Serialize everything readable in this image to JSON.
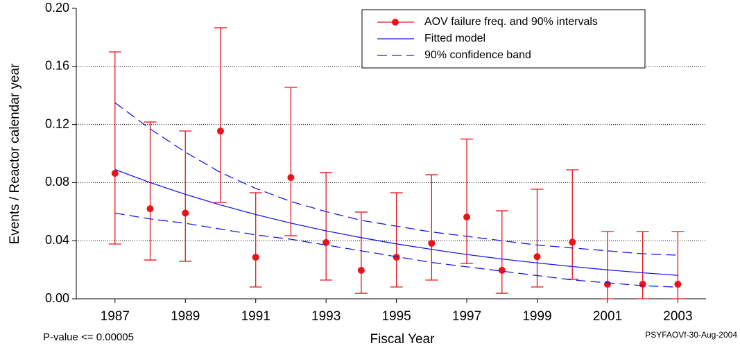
{
  "chart_data": {
    "type": "errorbar",
    "xlabel": "Fiscal Year",
    "ylabel": "Events / Reactor calendar year",
    "footnote_left": "P-value <= 0.00005",
    "footnote_right": "PSYFAOVf-30-Aug-2004",
    "x": [
      1987,
      1988,
      1989,
      1990,
      1991,
      1992,
      1993,
      1994,
      1995,
      1996,
      1997,
      1998,
      1999,
      2000,
      2001,
      2002,
      2003
    ],
    "xlim": [
      1985.9,
      2003.8
    ],
    "xticks": [
      1987,
      1989,
      1991,
      1993,
      1995,
      1997,
      1999,
      2001,
      2003
    ],
    "ylim": [
      0,
      0.2
    ],
    "yticks": [
      {
        "value": 0,
        "label": "0.00"
      },
      {
        "value": 0.04,
        "label": "0.04"
      },
      {
        "value": 0.08,
        "label": "0.08"
      },
      {
        "value": 0.12,
        "label": "0.12"
      },
      {
        "value": 0.16,
        "label": "0.16"
      },
      {
        "value": 0.2,
        "label": "0.20"
      }
    ],
    "grid": true,
    "legend": "top-right",
    "series": [
      {
        "name": "AOV failure freq. and 90% intervals",
        "color": "#e8141b",
        "marker": "circle",
        "values": [
          0.0864,
          0.062,
          0.059,
          0.1155,
          0.0286,
          0.0835,
          0.0387,
          0.0196,
          0.0286,
          0.0382,
          0.0563,
          0.0196,
          0.029,
          0.039,
          0.01,
          0.01,
          0.01
        ],
        "lower": [
          0.0377,
          0.0267,
          0.0258,
          0.0663,
          0.0081,
          0.0434,
          0.0129,
          0.0038,
          0.0081,
          0.0129,
          0.0243,
          0.0038,
          0.0081,
          0.0134,
          0,
          0,
          0
        ],
        "upper": [
          0.17,
          0.1217,
          0.1155,
          0.1866,
          0.073,
          0.1456,
          0.0869,
          0.0597,
          0.073,
          0.0854,
          0.11,
          0.0606,
          0.0754,
          0.0888,
          0.0463,
          0.0463,
          0.0463
        ]
      },
      {
        "name": "Fitted model",
        "color": "#1a1ae6",
        "dash": "solid",
        "values": [
          0.089,
          0.08,
          0.0719,
          0.0646,
          0.058,
          0.0521,
          0.0468,
          0.0421,
          0.0378,
          0.034,
          0.0305,
          0.0274,
          0.0247,
          0.0222,
          0.0199,
          0.0179,
          0.0161
        ]
      },
      {
        "name": "90% confidence band",
        "color": "#1a1ae6",
        "dash": "dashed",
        "upper": [
          0.135,
          0.117,
          0.101,
          0.087,
          0.076,
          0.067,
          0.06,
          0.054,
          0.05,
          0.046,
          0.043,
          0.04,
          0.037,
          0.035,
          0.033,
          0.031,
          0.03
        ],
        "lower": [
          0.059,
          0.055,
          0.052,
          0.048,
          0.044,
          0.041,
          0.037,
          0.033,
          0.029,
          0.025,
          0.022,
          0.019,
          0.016,
          0.013,
          0.011,
          0.009,
          0.008
        ]
      }
    ]
  }
}
